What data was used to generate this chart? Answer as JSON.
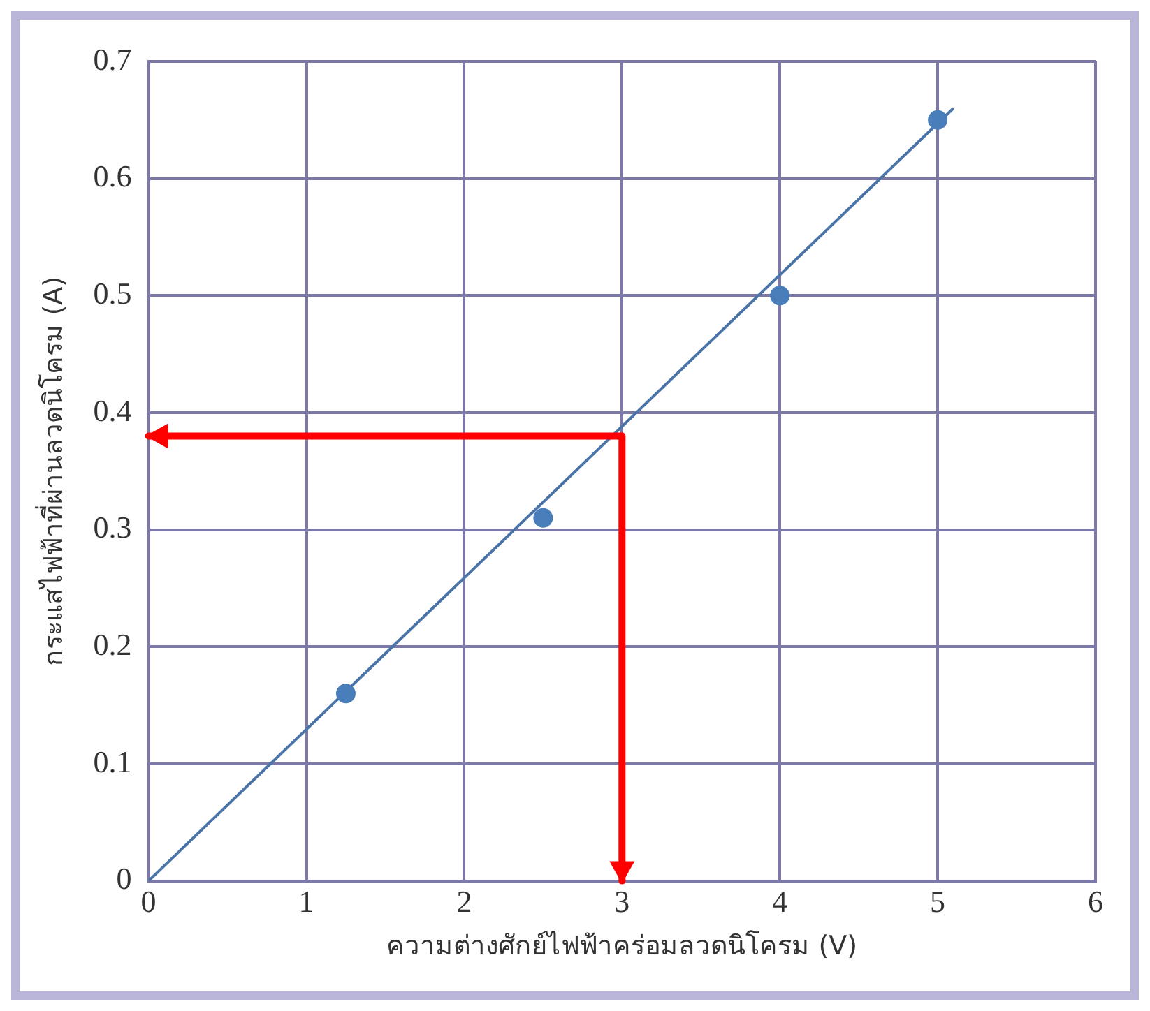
{
  "chart_data": {
    "type": "scatter",
    "xlabel": "ความต่างศักย์ไฟฟ้าคร่อมลวดนิโครม (V)",
    "ylabel": "กระแสไฟฟ้าที่ผ่านลวดนิโครม (A)",
    "xlim": [
      0,
      6
    ],
    "xticks": [
      0,
      1,
      2,
      3,
      4,
      5,
      6
    ],
    "ylim": [
      0,
      0.7
    ],
    "yticks": [
      0,
      0.1,
      0.2,
      0.3,
      0.4,
      0.5,
      0.6,
      0.7
    ],
    "grid": true,
    "series": [
      {
        "type": "scatter",
        "color": "#4a7ebb",
        "marker": "circle",
        "x": [
          1.25,
          2.5,
          4,
          5
        ],
        "values": [
          0.16,
          0.31,
          0.5,
          0.65
        ]
      },
      {
        "type": "line",
        "color": "#4a74a8",
        "marker": "none",
        "x": [
          0,
          5.1
        ],
        "values": [
          0,
          0.66
        ]
      }
    ],
    "ref_lines": [
      {
        "axis": "x",
        "value": 3,
        "color": "#ff0000"
      },
      {
        "axis": "y",
        "value": 0.38,
        "color": "#ff0000"
      }
    ]
  }
}
